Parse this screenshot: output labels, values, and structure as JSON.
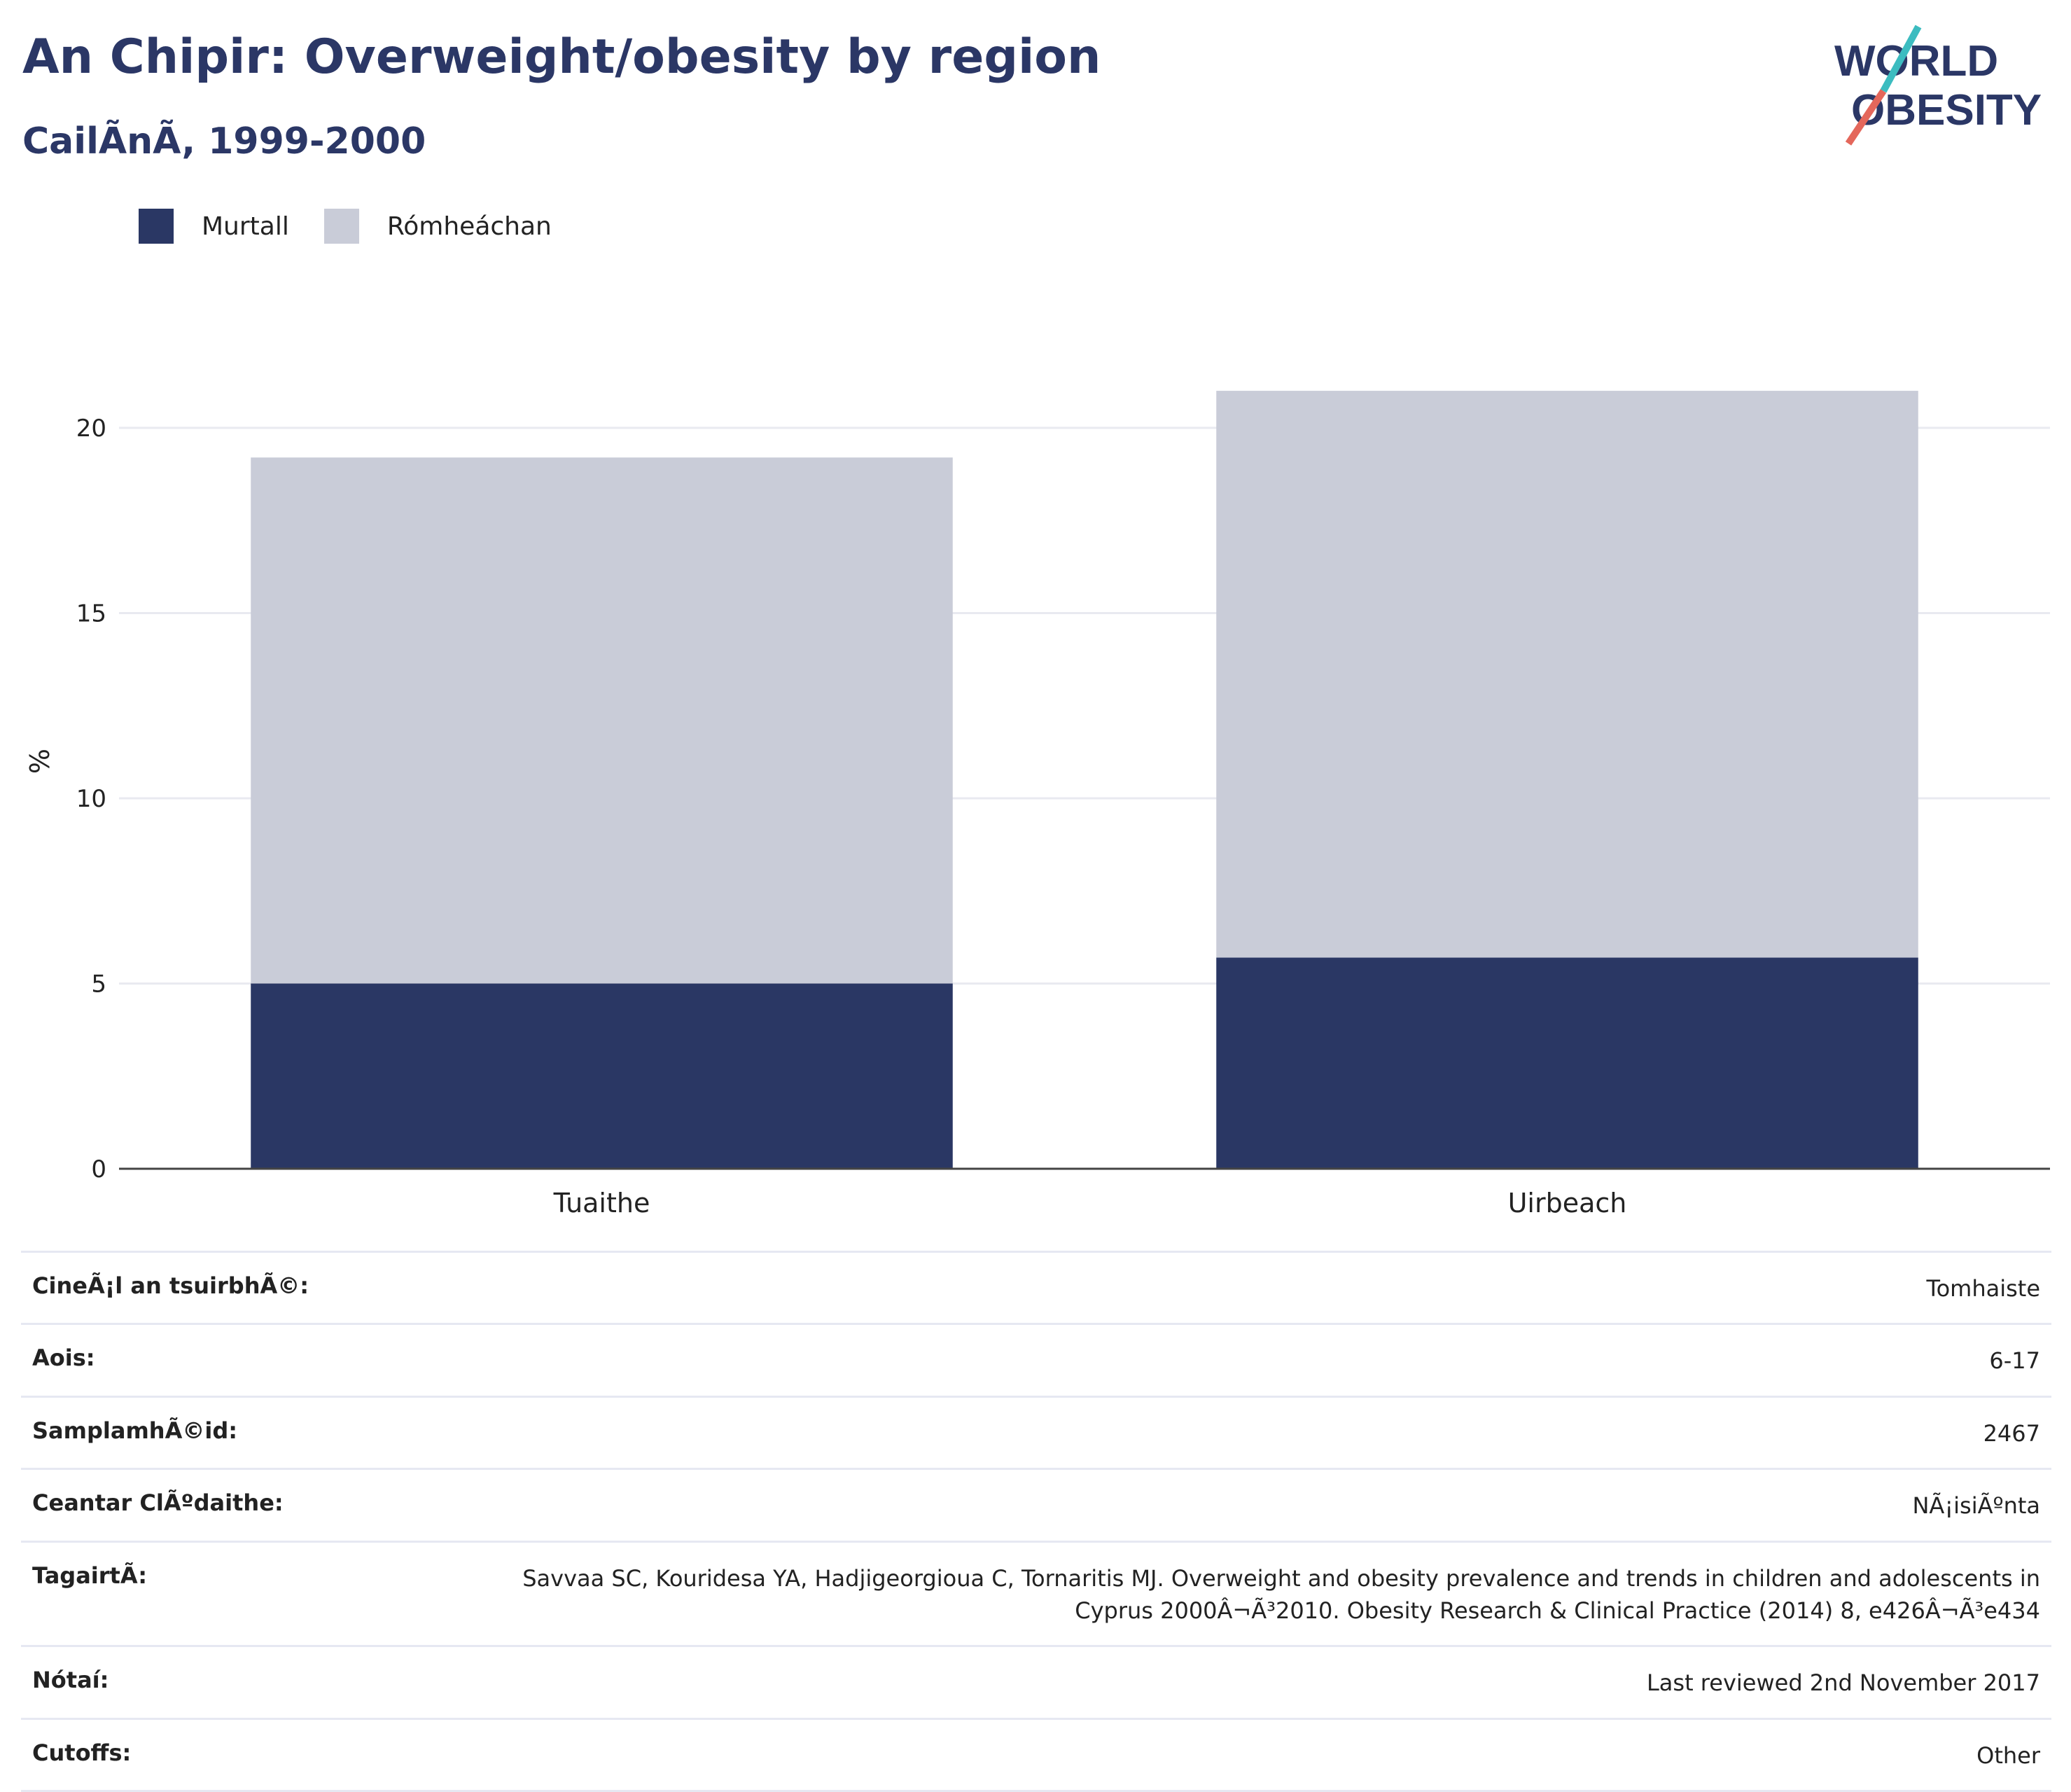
{
  "title": "An Chipir: Overweight/obesity by region",
  "subtitle": "CailÃnÃ, 1999-2000",
  "logo": {
    "line1": "WORLD",
    "line2": "OBESITY"
  },
  "colors": {
    "obese": "#2a3764",
    "overweight": "#c9ccd8",
    "title": "#2b3766",
    "grid": "#e9eaf0"
  },
  "chart_data": {
    "type": "bar",
    "stacked": true,
    "categories": [
      "Tuaithe",
      "Uirbeach"
    ],
    "series": [
      {
        "name": "Murtall",
        "values": [
          5.0,
          5.7
        ]
      },
      {
        "name": "Rómheáchan",
        "values": [
          14.2,
          15.3
        ]
      }
    ],
    "ylabel": "%",
    "ylim": [
      0,
      22
    ],
    "yticks": [
      0,
      5,
      10,
      15,
      20
    ],
    "grid": true,
    "legend": "top-left"
  },
  "info": [
    {
      "key": "CineÃ¡l an tsuirbhÃ©:",
      "value": "Tomhaiste"
    },
    {
      "key": "Aois:",
      "value": "6-17"
    },
    {
      "key": "SamplamhÃ©id:",
      "value": "2467"
    },
    {
      "key": "Ceantar ClÃºdaithe:",
      "value": "NÃ¡isiÃºnta"
    },
    {
      "key": "TagairtÃ:",
      "value": "Savvaa SC, Kouridesa YA, Hadjigeorgioua C, Tornaritis MJ. Overweight and obesity prevalence and trends in children and adolescents in Cyprus 2000Â¬Ã³2010. Obesity Research & Clinical Practice (2014) 8, e426Â¬Ã³e434"
    },
    {
      "key": "Nótaí:",
      "value": "Last reviewed 2nd November 2017"
    },
    {
      "key": "Cutoffs:",
      "value": "Other"
    }
  ]
}
